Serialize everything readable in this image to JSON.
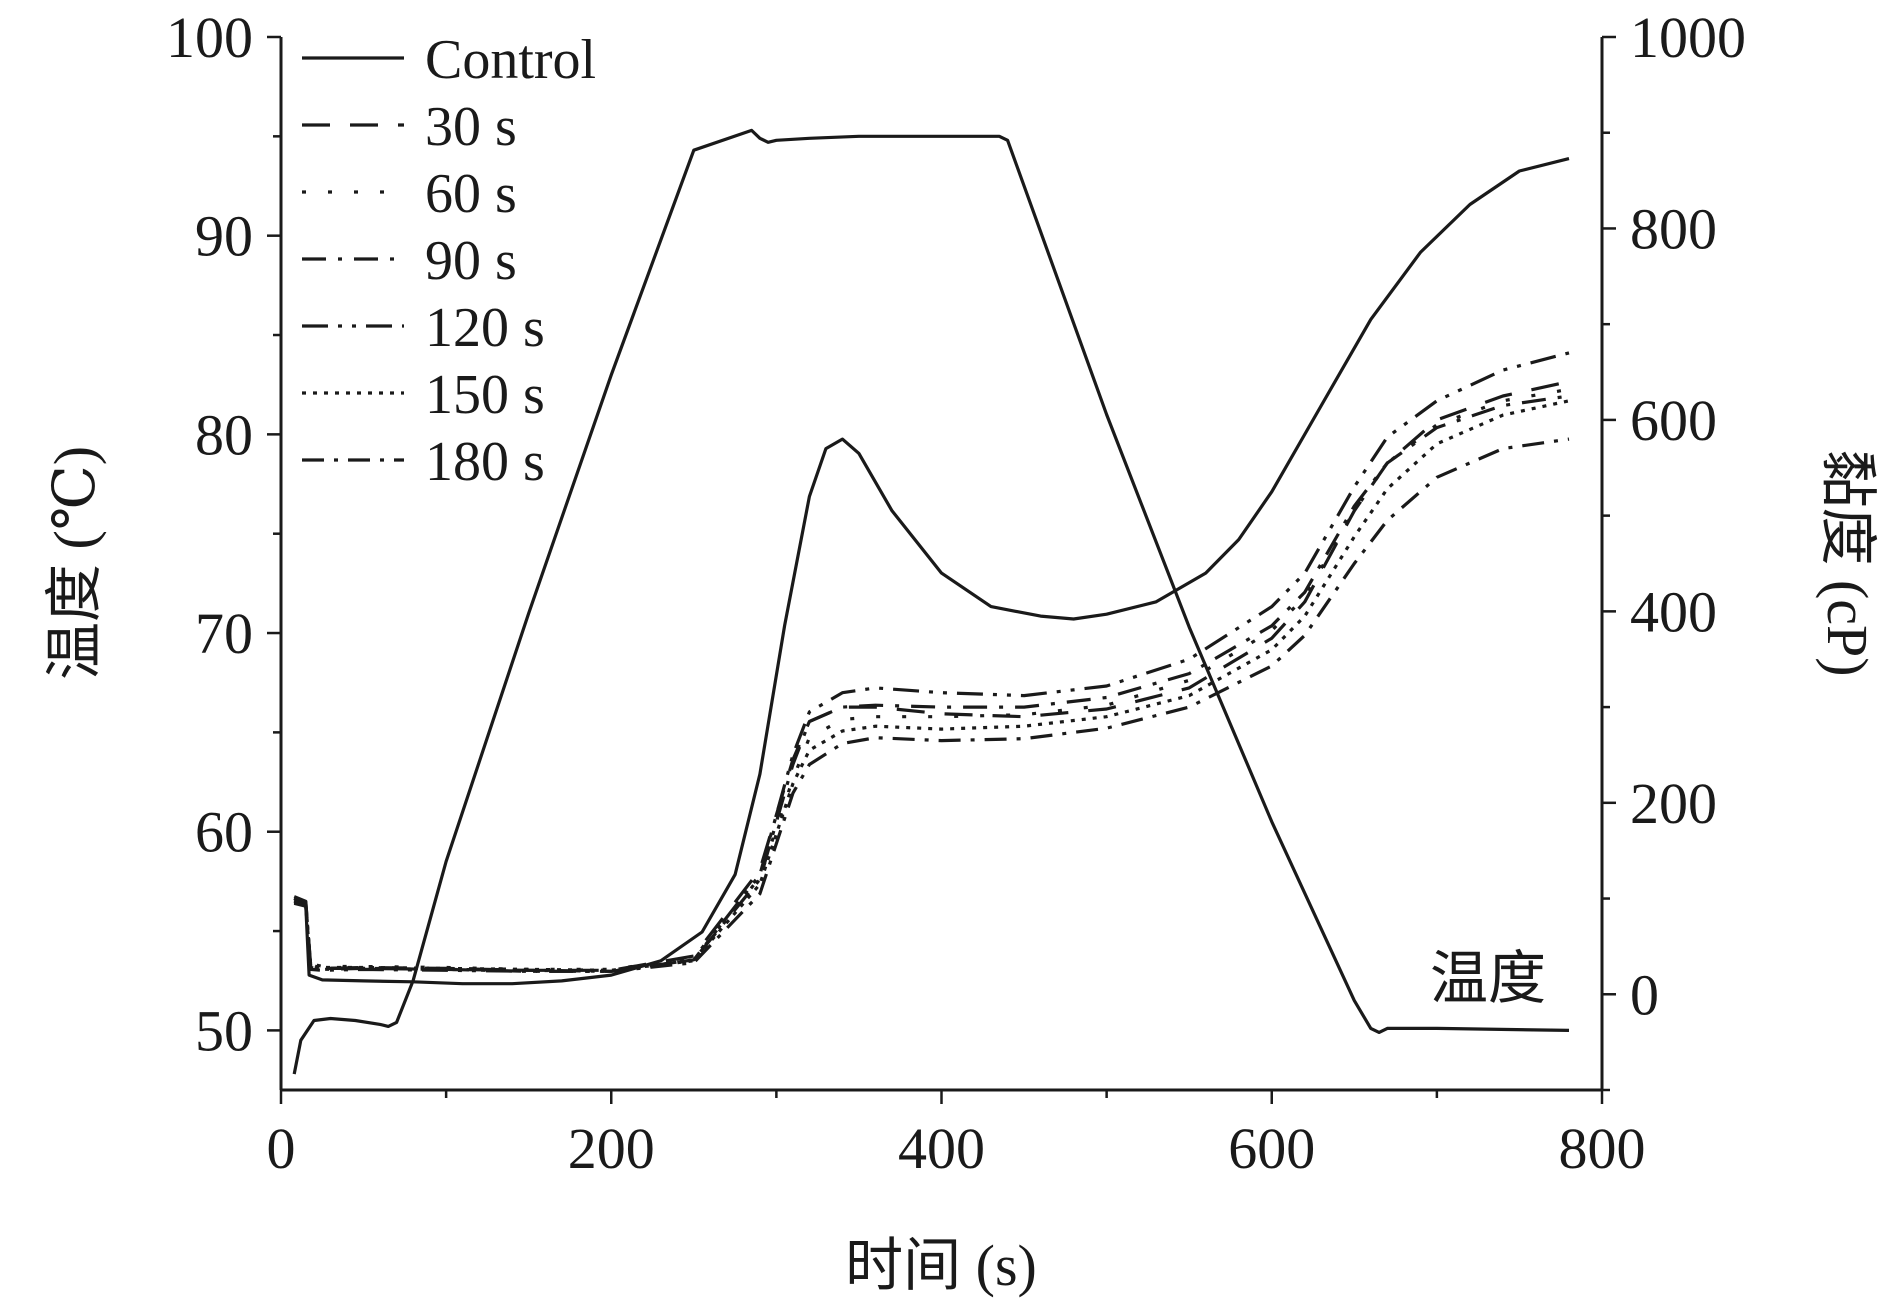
{
  "chart_data": {
    "type": "line",
    "xlabel": "时间 (s)",
    "ylabel_left": "温度 (℃)",
    "ylabel_right": "黏度 (cP)",
    "annotation": "温度",
    "xlim": [
      0,
      800
    ],
    "ylim_left": [
      47,
      100
    ],
    "ylim_right": [
      -100,
      1000
    ],
    "x_ticks": [
      "0",
      "200",
      "400",
      "600",
      "800"
    ],
    "y_left_ticks": [
      "50",
      "60",
      "70",
      "80",
      "90",
      "100"
    ],
    "y_right_ticks": [
      "0",
      "200",
      "400",
      "600",
      "800",
      "1000"
    ],
    "grid": false,
    "legend_position": "top-left",
    "temperature": {
      "axis": "left",
      "x": [
        8,
        12,
        20,
        30,
        45,
        60,
        65,
        70,
        80,
        100,
        150,
        200,
        250,
        285,
        290,
        295,
        300,
        320,
        350,
        400,
        435,
        440,
        460,
        500,
        550,
        600,
        650,
        660,
        665,
        670,
        700,
        780
      ],
      "y": [
        47.8,
        49.5,
        50.5,
        50.6,
        50.5,
        50.3,
        50.2,
        50.4,
        52.5,
        58.5,
        71,
        83,
        94.3,
        95.3,
        94.9,
        94.7,
        94.8,
        94.9,
        95,
        95,
        95,
        94.8,
        90.2,
        81,
        70.3,
        60.5,
        51.5,
        50.1,
        49.9,
        50.1,
        50.1,
        50
      ]
    },
    "series": [
      {
        "name": "Control",
        "x": [
          8,
          15,
          17,
          25,
          50,
          80,
          110,
          140,
          170,
          200,
          230,
          255,
          275,
          290,
          305,
          320,
          330,
          340,
          350,
          370,
          400,
          430,
          460,
          480,
          500,
          530,
          560,
          580,
          600,
          630,
          660,
          690,
          720,
          750,
          780
        ],
        "y": [
          100,
          92,
          20,
          15,
          14,
          13,
          11,
          11,
          14,
          20,
          35,
          65,
          125,
          230,
          385,
          520,
          570,
          580,
          565,
          505,
          440,
          405,
          395,
          392,
          397,
          410,
          440,
          475,
          525,
          615,
          705,
          775,
          825,
          860,
          873
        ]
      },
      {
        "name": "30 s",
        "x": [
          8,
          15,
          18,
          25,
          50,
          100,
          150,
          200,
          250,
          290,
          310,
          320,
          340,
          360,
          400,
          450,
          500,
          550,
          600,
          620,
          650,
          670,
          700,
          740,
          780
        ],
        "y": [
          100,
          96,
          30,
          27,
          28,
          27,
          25,
          25,
          40,
          130,
          245,
          285,
          300,
          300,
          293,
          290,
          298,
          320,
          372,
          410,
          505,
          555,
          600,
          625,
          640
        ]
      },
      {
        "name": "60 s",
        "x": [
          8,
          15,
          18,
          25,
          50,
          100,
          150,
          200,
          250,
          290,
          310,
          320,
          340,
          360,
          400,
          450,
          500,
          550,
          600,
          620,
          650,
          670,
          700,
          740,
          780
        ],
        "y": [
          98,
          94,
          32,
          29,
          29,
          28,
          26,
          26,
          38,
          122,
          225,
          268,
          287,
          290,
          290,
          292,
          302,
          328,
          380,
          415,
          505,
          555,
          595,
          620,
          632
        ]
      },
      {
        "name": "90 s",
        "x": [
          8,
          15,
          18,
          25,
          50,
          100,
          150,
          200,
          250,
          290,
          310,
          320,
          340,
          360,
          400,
          450,
          500,
          550,
          600,
          620,
          650,
          670,
          700,
          740,
          780
        ],
        "y": [
          95,
          92,
          28,
          26,
          27,
          26,
          24,
          24,
          36,
          120,
          240,
          285,
          300,
          302,
          300,
          300,
          310,
          335,
          385,
          420,
          510,
          555,
          592,
          615,
          625
        ]
      },
      {
        "name": "120 s",
        "x": [
          8,
          15,
          18,
          25,
          50,
          100,
          150,
          200,
          250,
          290,
          310,
          320,
          340,
          360,
          400,
          450,
          500,
          550,
          600,
          620,
          650,
          670,
          700,
          740,
          780
        ],
        "y": [
          102,
          97,
          26,
          25,
          26,
          25,
          24,
          24,
          36,
          125,
          250,
          295,
          315,
          320,
          315,
          312,
          322,
          350,
          405,
          440,
          530,
          582,
          620,
          652,
          670
        ]
      },
      {
        "name": "150 s",
        "x": [
          8,
          15,
          18,
          25,
          50,
          100,
          150,
          200,
          250,
          290,
          310,
          320,
          340,
          360,
          400,
          450,
          500,
          550,
          600,
          620,
          650,
          670,
          700,
          740,
          780
        ],
        "y": [
          96,
          93,
          30,
          28,
          28,
          27,
          26,
          25,
          35,
          115,
          220,
          255,
          275,
          280,
          277,
          280,
          290,
          312,
          360,
          395,
          478,
          528,
          575,
          605,
          620
        ]
      },
      {
        "name": "180 s",
        "x": [
          8,
          15,
          18,
          25,
          50,
          100,
          150,
          200,
          250,
          290,
          310,
          320,
          340,
          360,
          400,
          450,
          500,
          550,
          600,
          620,
          650,
          670,
          700,
          740,
          780
        ],
        "y": [
          97,
          92,
          28,
          27,
          27,
          26,
          25,
          24,
          33,
          105,
          210,
          240,
          262,
          268,
          265,
          267,
          278,
          300,
          343,
          375,
          450,
          495,
          540,
          570,
          580
        ]
      }
    ]
  }
}
